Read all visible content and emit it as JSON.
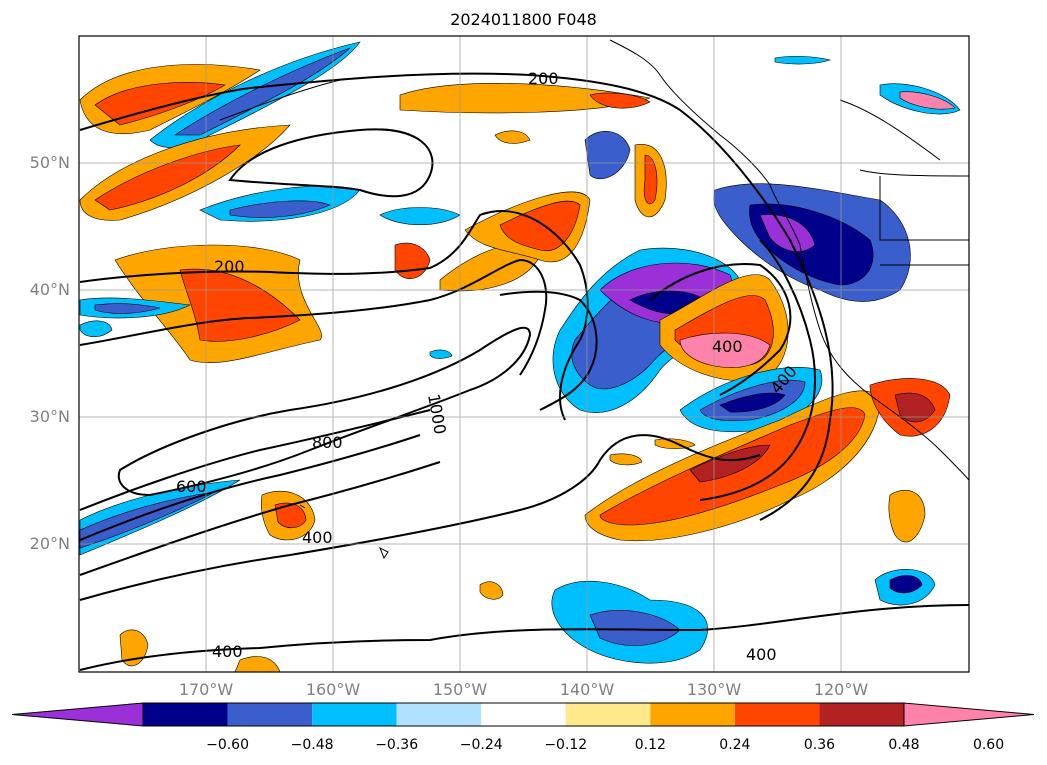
{
  "title": "2024011800 F048",
  "lat_labels": [
    "50°N",
    "40°N",
    "30°N",
    "20°N"
  ],
  "lon_labels": [
    "170°W",
    "160°W",
    "150°W",
    "140°W",
    "130°W",
    "120°W"
  ],
  "contour_labels": [
    "200",
    "200",
    "400",
    "400",
    "400",
    "400",
    "600",
    "800",
    "1000",
    "400"
  ],
  "colorbar": {
    "colors": [
      "#9b30d9",
      "#00008b",
      "#3a5fcd",
      "#00bfff",
      "#b0e2ff",
      "#ffffff",
      "#ffe98a",
      "#ffa500",
      "#ff4500",
      "#b22222",
      "#ff82ab"
    ],
    "ticks": [
      "−0.60",
      "−0.48",
      "−0.36",
      "−0.24",
      "−0.12",
      "0.12",
      "0.24",
      "0.36",
      "0.48",
      "0.60"
    ]
  }
}
